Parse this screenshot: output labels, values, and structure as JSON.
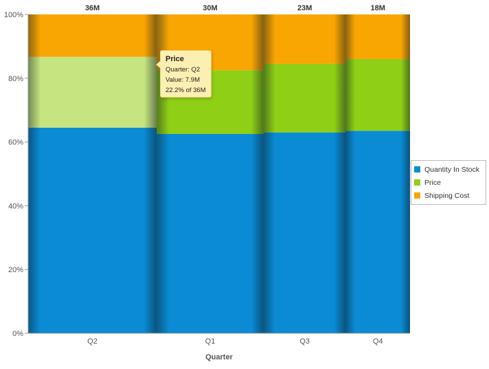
{
  "chart_data": {
    "type": "bar",
    "stacked": "percent",
    "variable_width": true,
    "categories": [
      "Q2",
      "Q1",
      "Q3",
      "Q4"
    ],
    "totals_labels": [
      "36M",
      "30M",
      "23M",
      "18M"
    ],
    "totals": [
      36,
      30,
      23,
      18
    ],
    "series": [
      {
        "name": "Quantity In Stock",
        "values": [
          64.5,
          62.5,
          63.0,
          63.5
        ]
      },
      {
        "name": "Price",
        "values": [
          22.2,
          20.0,
          21.5,
          22.5
        ]
      },
      {
        "name": "Shipping Cost",
        "values": [
          13.3,
          17.5,
          15.5,
          14.0
        ]
      }
    ],
    "ylim": [
      0,
      100
    ],
    "yticks": [
      0,
      20,
      40,
      60,
      80,
      100
    ],
    "ytick_labels": [
      "0%",
      "20%",
      "40%",
      "60%",
      "80%",
      "100%"
    ],
    "xlabel": "Quarter",
    "ylabel": "",
    "grid": false,
    "legend_position": "right",
    "highlighted": {
      "category": "Q2",
      "series": "Price"
    }
  },
  "colors": {
    "Quantity In Stock": "#0a8bd4",
    "Price": "#8fcf16",
    "Shipping Cost": "#f9a502",
    "highlight_price": "#c6e47f",
    "shadow": "#1c2a33",
    "axis": "#999999"
  },
  "tooltip": {
    "title": "Price",
    "line1": "Quarter: Q2",
    "line2": "Value: 7.9M",
    "line3": "22.2% of 36M"
  }
}
